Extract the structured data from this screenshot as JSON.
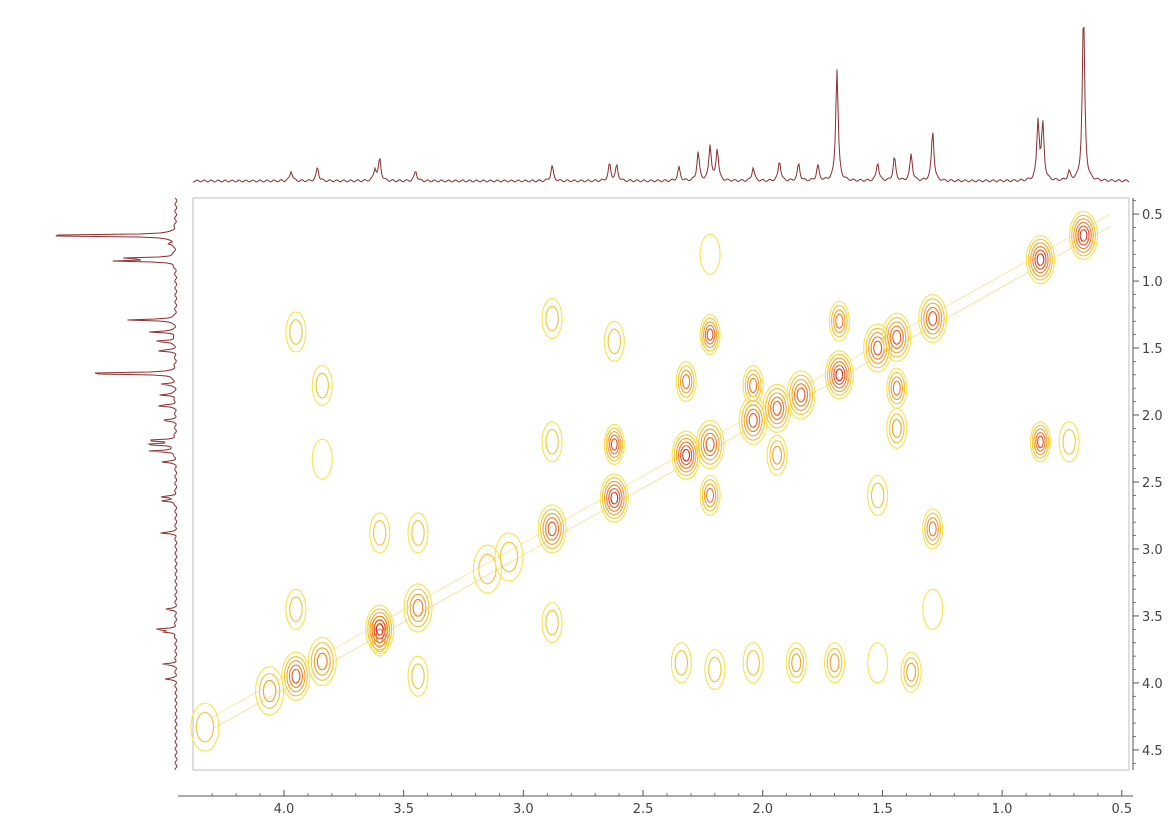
{
  "chart_data": {
    "type": "contour",
    "title": "",
    "xlabel": "",
    "ylabel": "",
    "x_axis": {
      "range": [
        4.38,
        0.47
      ],
      "reversed": true,
      "ticks": [
        4.0,
        3.5,
        3.0,
        2.5,
        2.0,
        1.5,
        1.0,
        0.5
      ],
      "tick_labels": [
        "4.0",
        "3.5",
        "3.0",
        "2.5",
        "2.0",
        "1.5",
        "1.0",
        "0.5"
      ]
    },
    "y_axis": {
      "range": [
        0.38,
        4.65
      ],
      "reversed": true,
      "position": "right",
      "ticks": [
        0.5,
        1.0,
        1.5,
        2.0,
        2.5,
        3.0,
        3.5,
        4.0,
        4.5
      ],
      "tick_labels": [
        "0.5",
        "1.0",
        "1.5",
        "2.0",
        "2.5",
        "3.0",
        "3.5",
        "4.0",
        "4.5"
      ]
    },
    "contour_levels": 6,
    "level_colors": [
      "#f7e34e",
      "#f2c436",
      "#efa22e",
      "#ea7b2a",
      "#e04f2b",
      "#c8282e"
    ],
    "spectrum_color": "#8b2e2e",
    "diagonal_peaks": [
      {
        "x": 4.33,
        "y": 4.33,
        "level": 2
      },
      {
        "x": 4.06,
        "y": 4.06,
        "level": 3
      },
      {
        "x": 3.95,
        "y": 3.95,
        "level": 5
      },
      {
        "x": 3.84,
        "y": 3.84,
        "level": 4
      },
      {
        "x": 3.6,
        "y": 3.6,
        "level": 6
      },
      {
        "x": 3.44,
        "y": 3.44,
        "level": 4
      },
      {
        "x": 3.15,
        "y": 3.15,
        "level": 2
      },
      {
        "x": 3.06,
        "y": 3.06,
        "level": 2
      },
      {
        "x": 2.88,
        "y": 2.85,
        "level": 5
      },
      {
        "x": 2.62,
        "y": 2.62,
        "level": 6
      },
      {
        "x": 2.32,
        "y": 2.3,
        "level": 6
      },
      {
        "x": 2.22,
        "y": 2.22,
        "level": 5
      },
      {
        "x": 2.04,
        "y": 2.04,
        "level": 5
      },
      {
        "x": 1.94,
        "y": 1.95,
        "level": 5
      },
      {
        "x": 1.84,
        "y": 1.85,
        "level": 5
      },
      {
        "x": 1.68,
        "y": 1.7,
        "level": 6
      },
      {
        "x": 1.52,
        "y": 1.5,
        "level": 5
      },
      {
        "x": 1.44,
        "y": 1.42,
        "level": 5
      },
      {
        "x": 1.29,
        "y": 1.28,
        "level": 5
      },
      {
        "x": 0.84,
        "y": 0.84,
        "level": 6
      },
      {
        "x": 0.66,
        "y": 0.66,
        "level": 6
      }
    ],
    "cross_peaks": [
      {
        "x": 3.95,
        "y": 1.38,
        "level": 2
      },
      {
        "x": 3.84,
        "y": 1.78,
        "level": 2
      },
      {
        "x": 3.84,
        "y": 2.33,
        "level": 1
      },
      {
        "x": 3.95,
        "y": 3.45,
        "level": 2
      },
      {
        "x": 3.6,
        "y": 2.88,
        "level": 2
      },
      {
        "x": 3.44,
        "y": 2.88,
        "level": 2
      },
      {
        "x": 3.6,
        "y": 3.65,
        "level": 4
      },
      {
        "x": 3.44,
        "y": 3.95,
        "level": 2
      },
      {
        "x": 2.88,
        "y": 1.28,
        "level": 2
      },
      {
        "x": 2.88,
        "y": 2.2,
        "level": 2
      },
      {
        "x": 2.88,
        "y": 3.55,
        "level": 2
      },
      {
        "x": 2.62,
        "y": 1.45,
        "level": 2
      },
      {
        "x": 2.62,
        "y": 2.22,
        "level": 5
      },
      {
        "x": 2.32,
        "y": 1.75,
        "level": 4
      },
      {
        "x": 2.22,
        "y": 1.4,
        "level": 5
      },
      {
        "x": 2.22,
        "y": 2.6,
        "level": 4
      },
      {
        "x": 2.22,
        "y": 0.8,
        "level": 1
      },
      {
        "x": 2.04,
        "y": 1.78,
        "level": 4
      },
      {
        "x": 1.94,
        "y": 2.3,
        "level": 3
      },
      {
        "x": 1.68,
        "y": 1.3,
        "level": 4
      },
      {
        "x": 1.44,
        "y": 1.8,
        "level": 4
      },
      {
        "x": 1.44,
        "y": 2.1,
        "level": 3
      },
      {
        "x": 1.52,
        "y": 2.6,
        "level": 2
      },
      {
        "x": 1.29,
        "y": 2.85,
        "level": 4
      },
      {
        "x": 1.29,
        "y": 3.45,
        "level": 1
      },
      {
        "x": 0.84,
        "y": 2.2,
        "level": 5
      },
      {
        "x": 0.72,
        "y": 2.2,
        "level": 2
      },
      {
        "x": 2.34,
        "y": 3.85,
        "level": 2
      },
      {
        "x": 2.2,
        "y": 3.9,
        "level": 2
      },
      {
        "x": 2.04,
        "y": 3.85,
        "level": 2
      },
      {
        "x": 1.86,
        "y": 3.85,
        "level": 3
      },
      {
        "x": 1.7,
        "y": 3.85,
        "level": 3
      },
      {
        "x": 1.52,
        "y": 3.85,
        "level": 1
      },
      {
        "x": 1.38,
        "y": 3.92,
        "level": 3
      }
    ],
    "projection_peaks": [
      {
        "shift": 3.97,
        "height": 0.06
      },
      {
        "shift": 3.86,
        "height": 0.08
      },
      {
        "shift": 3.62,
        "height": 0.07
      },
      {
        "shift": 3.6,
        "height": 0.13
      },
      {
        "shift": 3.45,
        "height": 0.06
      },
      {
        "shift": 2.88,
        "height": 0.09
      },
      {
        "shift": 2.64,
        "height": 0.1
      },
      {
        "shift": 2.61,
        "height": 0.09
      },
      {
        "shift": 2.35,
        "height": 0.08
      },
      {
        "shift": 2.27,
        "height": 0.17
      },
      {
        "shift": 2.22,
        "height": 0.21
      },
      {
        "shift": 2.19,
        "height": 0.19
      },
      {
        "shift": 2.04,
        "height": 0.08
      },
      {
        "shift": 1.93,
        "height": 0.12
      },
      {
        "shift": 1.85,
        "height": 0.1
      },
      {
        "shift": 1.77,
        "height": 0.09
      },
      {
        "shift": 1.69,
        "height": 0.66
      },
      {
        "shift": 1.52,
        "height": 0.11
      },
      {
        "shift": 1.45,
        "height": 0.14
      },
      {
        "shift": 1.38,
        "height": 0.16
      },
      {
        "shift": 1.29,
        "height": 0.3
      },
      {
        "shift": 0.85,
        "height": 0.35
      },
      {
        "shift": 0.83,
        "height": 0.33
      },
      {
        "shift": 0.72,
        "height": 0.05
      },
      {
        "shift": 0.66,
        "height": 1.0
      }
    ]
  }
}
